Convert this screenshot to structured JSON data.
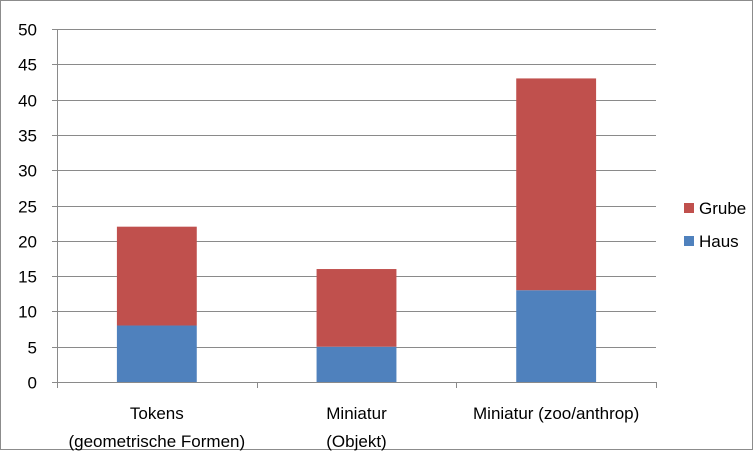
{
  "chart_data": {
    "type": "bar",
    "stacked": true,
    "categories": [
      [
        "Tokens",
        "(geometrische Formen)"
      ],
      [
        "Miniatur",
        "(Objekt)"
      ],
      [
        "Miniatur (zoo/anthrop)"
      ]
    ],
    "series": [
      {
        "name": "Haus",
        "values": [
          8,
          5,
          13
        ],
        "color": "#4F81BD"
      },
      {
        "name": "Grube",
        "values": [
          14,
          11,
          30
        ],
        "color": "#C0504D"
      }
    ],
    "title": "",
    "xlabel": "",
    "ylabel": "",
    "ylim": [
      0,
      50
    ],
    "yticks": [
      0,
      5,
      10,
      15,
      20,
      25,
      30,
      35,
      40,
      45,
      50
    ],
    "grid": true,
    "legend_position": "right"
  }
}
